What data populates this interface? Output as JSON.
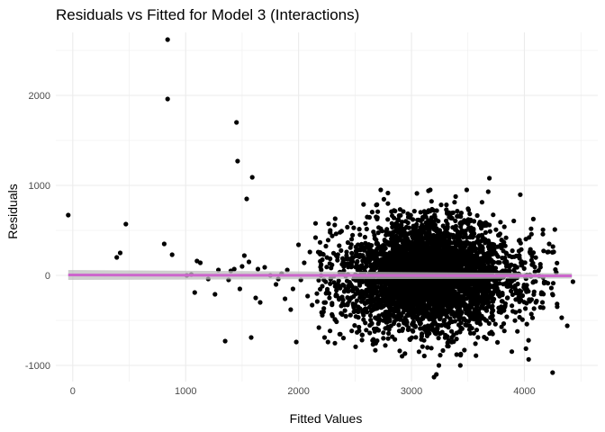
{
  "chart_data": {
    "type": "scatter",
    "title": "Residuals vs Fitted for Model 3 (Interactions)",
    "xlabel": "Fitted Values",
    "ylabel": "Residuals",
    "xlim": [
      -150,
      4650
    ],
    "ylim": [
      -1180,
      2700
    ],
    "x_ticks": [
      0,
      1000,
      2000,
      3000,
      4000
    ],
    "y_ticks": [
      -1000,
      0,
      1000,
      2000
    ],
    "grid": true,
    "point_color": "#000000",
    "smooth_color": "#cc66cc",
    "band_color": "#bdbdbd",
    "smooth_line": {
      "x": [
        -40,
        4420
      ],
      "y": [
        5,
        -5
      ]
    },
    "smooth_band": {
      "x": [
        -40,
        4420
      ],
      "upper": [
        60,
        25
      ],
      "lower": [
        -50,
        -35
      ]
    },
    "points": [
      [
        -40,
        670
      ],
      [
        390,
        200
      ],
      [
        420,
        250
      ],
      [
        470,
        570
      ],
      [
        810,
        350
      ],
      [
        840,
        2620
      ],
      [
        840,
        1960
      ],
      [
        880,
        230
      ],
      [
        1010,
        0
      ],
      [
        1050,
        10
      ],
      [
        1080,
        -190
      ],
      [
        1100,
        160
      ],
      [
        1130,
        140
      ],
      [
        1200,
        -40
      ],
      [
        1260,
        -210
      ],
      [
        1290,
        60
      ],
      [
        1350,
        -730
      ],
      [
        1380,
        -50
      ],
      [
        1400,
        50
      ],
      [
        1430,
        70
      ],
      [
        1450,
        1700
      ],
      [
        1460,
        1270
      ],
      [
        1480,
        -150
      ],
      [
        1500,
        100
      ],
      [
        1520,
        220
      ],
      [
        1540,
        850
      ],
      [
        1560,
        150
      ],
      [
        1580,
        -690
      ],
      [
        1590,
        1090
      ],
      [
        1620,
        -250
      ],
      [
        1640,
        70
      ],
      [
        1660,
        -300
      ],
      [
        1700,
        90
      ],
      [
        1750,
        0
      ],
      [
        1800,
        -100
      ],
      [
        1820,
        -40
      ],
      [
        1850,
        20
      ],
      [
        1880,
        -260
      ],
      [
        1900,
        60
      ],
      [
        1930,
        -380
      ],
      [
        1950,
        -150
      ],
      [
        1980,
        -740
      ],
      [
        2000,
        340
      ],
      [
        2020,
        -50
      ],
      [
        2050,
        140
      ],
      [
        2080,
        -230
      ],
      [
        2100,
        260
      ],
      [
        2120,
        -330
      ],
      [
        2150,
        420
      ],
      [
        2180,
        -580
      ],
      [
        2200,
        120
      ],
      [
        2230,
        -690
      ],
      [
        2260,
        -740
      ],
      [
        2280,
        500
      ],
      [
        2300,
        -450
      ],
      [
        2320,
        560
      ],
      [
        2340,
        -120
      ],
      [
        2360,
        330
      ],
      [
        4250,
        -1080
      ],
      [
        4270,
        510
      ],
      [
        4330,
        -470
      ],
      [
        4380,
        -560
      ],
      [
        4430,
        -70
      ],
      [
        3200,
        -1130
      ],
      [
        3220,
        -1100
      ],
      [
        3400,
        -880
      ],
      [
        3690,
        1080
      ],
      [
        3680,
        930
      ],
      [
        3150,
        940
      ]
    ],
    "dense_cloud": {
      "cluster_n": 3900,
      "cluster_x_mean": 3150,
      "cluster_x_sd": 330,
      "cluster_y_sd": 290,
      "mid_n": 380,
      "mid_x_range": [
        2150,
        4100
      ],
      "mid_y_sd": 360,
      "right_n": 60,
      "right_x_range": [
        3950,
        4300
      ],
      "right_y_sd": 280,
      "seed": 20240
    }
  }
}
